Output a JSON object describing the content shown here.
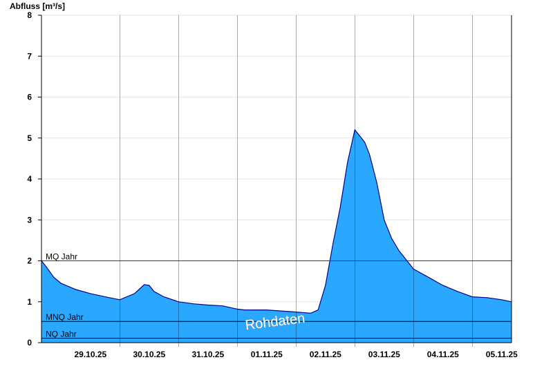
{
  "chart_data": {
    "type": "area",
    "ylabel": "Abfluss [m³/s]",
    "ylim": [
      0,
      8
    ],
    "yticks": [
      "0",
      "1",
      "2",
      "3",
      "4",
      "5",
      "6",
      "7",
      "8"
    ],
    "xlim": [
      "2025-10-28T16:00",
      "2025-11-05T16:00"
    ],
    "xticks": [
      {
        "label": "29.10.25",
        "date": "2025-10-29"
      },
      {
        "label": "30.10.25",
        "date": "2025-10-30"
      },
      {
        "label": "31.10.25",
        "date": "2025-10-31"
      },
      {
        "label": "01.11.25",
        "date": "2025-11-01"
      },
      {
        "label": "02.11.25",
        "date": "2025-11-02"
      },
      {
        "label": "03.11.25",
        "date": "2025-11-03"
      },
      {
        "label": "04.11.25",
        "date": "2025-11-04"
      },
      {
        "label": "05.11.25",
        "date": "2025-11-05"
      }
    ],
    "grid": true,
    "series": [
      {
        "x": [
          "2025-10-28T16:00",
          "2025-10-28T18:00",
          "2025-10-28T21:00",
          "2025-10-29T00:00",
          "2025-10-29T06:00",
          "2025-10-29T12:00",
          "2025-10-29T18:00",
          "2025-10-30T00:00",
          "2025-10-30T06:00",
          "2025-10-30T10:00",
          "2025-10-30T12:00",
          "2025-10-30T14:00",
          "2025-10-30T18:00",
          "2025-10-31T00:00",
          "2025-10-31T06:00",
          "2025-10-31T12:00",
          "2025-10-31T18:00",
          "2025-11-01T00:00",
          "2025-11-01T03:00",
          "2025-11-01T12:00",
          "2025-11-02T00:00",
          "2025-11-02T06:00",
          "2025-11-02T09:00",
          "2025-11-02T12:00",
          "2025-11-02T15:00",
          "2025-11-02T18:00",
          "2025-11-02T21:00",
          "2025-11-03T00:00",
          "2025-11-03T02:00",
          "2025-11-03T04:00",
          "2025-11-03T06:00",
          "2025-11-03T09:00",
          "2025-11-03T12:00",
          "2025-11-03T15:00",
          "2025-11-03T18:00",
          "2025-11-04T00:00",
          "2025-11-04T06:00",
          "2025-11-04T12:00",
          "2025-11-04T18:00",
          "2025-11-05T00:00",
          "2025-11-05T06:00",
          "2025-11-05T12:00",
          "2025-11-05T16:00"
        ],
        "y": [
          2.0,
          1.85,
          1.6,
          1.45,
          1.3,
          1.2,
          1.12,
          1.05,
          1.2,
          1.42,
          1.4,
          1.25,
          1.12,
          1.0,
          0.95,
          0.92,
          0.9,
          0.82,
          0.8,
          0.8,
          0.75,
          0.72,
          0.8,
          1.4,
          2.4,
          3.3,
          4.4,
          5.2,
          5.05,
          4.9,
          4.6,
          3.9,
          3.0,
          2.55,
          2.25,
          1.8,
          1.6,
          1.4,
          1.25,
          1.12,
          1.1,
          1.05,
          1.0
        ]
      }
    ],
    "reference_lines": [
      {
        "label": "MQ Jahr",
        "value": 2.0,
        "color": "#006400"
      },
      {
        "label": "MNQ Jahr",
        "value": 0.52,
        "color": "#000000"
      },
      {
        "label": "NQ Jahr",
        "value": 0.11,
        "color": "#000000"
      }
    ],
    "fill_color": "#2aa8ff",
    "line_color": "#00008b",
    "watermark": "Rohdaten"
  }
}
